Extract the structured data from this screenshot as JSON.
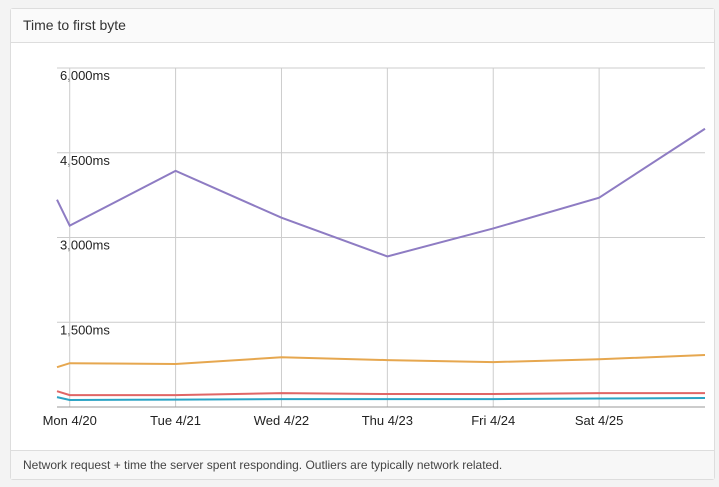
{
  "header": {
    "title": "Time to first byte"
  },
  "chart_data": {
    "type": "line",
    "x": [
      -0.12,
      0,
      1,
      2,
      3,
      4,
      5,
      6
    ],
    "xlim": [
      -0.12,
      6
    ],
    "xticks": [
      {
        "value": 0,
        "label": "Mon 4/20"
      },
      {
        "value": 1,
        "label": "Tue 4/21"
      },
      {
        "value": 2,
        "label": "Wed 4/22"
      },
      {
        "value": 3,
        "label": "Thu 4/23"
      },
      {
        "value": 4,
        "label": "Fri 4/24"
      },
      {
        "value": 5,
        "label": "Sat 4/25"
      }
    ],
    "ylim": [
      0,
      6000
    ],
    "yticks": [
      {
        "value": 1500,
        "label": "1,500ms"
      },
      {
        "value": 3000,
        "label": "3,000ms"
      },
      {
        "value": 4500,
        "label": "4,500ms"
      },
      {
        "value": 6000,
        "label": "6,000ms"
      }
    ],
    "grid": true,
    "series": [
      {
        "color": "#8e7cc3",
        "values": [
          3670,
          3210,
          4180,
          3350,
          2665,
          3160,
          3705,
          4925
        ]
      },
      {
        "color": "#e6a74f",
        "values": [
          705,
          775,
          760,
          880,
          830,
          795,
          845,
          920
        ]
      },
      {
        "color": "#e06666",
        "values": [
          280,
          210,
          210,
          245,
          230,
          230,
          245,
          245
        ]
      },
      {
        "color": "#2ba3c4",
        "values": [
          175,
          125,
          130,
          140,
          140,
          140,
          150,
          160
        ]
      }
    ]
  },
  "footer": {
    "text": "Network request + time the server spent responding. Outliers are typically network related."
  }
}
